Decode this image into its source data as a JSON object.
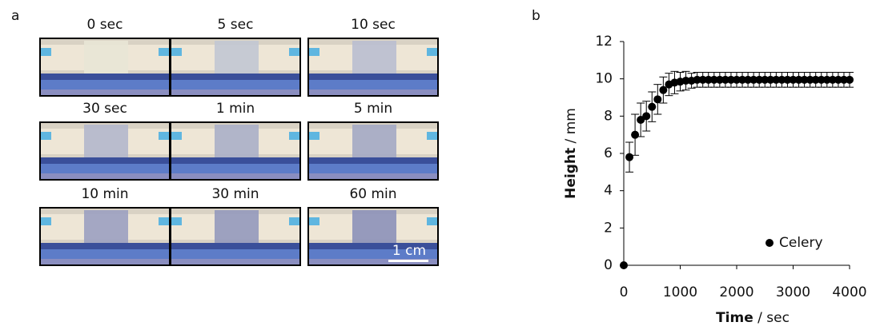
{
  "panel_a": {
    "label": "a",
    "frames": [
      "0 sec",
      "5 sec",
      "10 sec",
      "30 sec",
      "1 min",
      "5 min",
      "10 min",
      "30 min",
      "60 min"
    ],
    "scale_bar": "1 cm"
  },
  "chart_data": {
    "type": "scatter",
    "label": "b",
    "xlabel": [
      "Time",
      " / sec"
    ],
    "ylabel": [
      "Height",
      " / mm"
    ],
    "x": [
      0,
      100,
      200,
      300,
      400,
      500,
      600,
      700,
      800,
      900,
      1000,
      1100,
      1200,
      1300,
      1400,
      1500,
      1600,
      1700,
      1800,
      1900,
      2000,
      2100,
      2200,
      2300,
      2400,
      2500,
      2600,
      2700,
      2800,
      2900,
      3000,
      3100,
      3200,
      3300,
      3400,
      3500,
      3600,
      3700,
      3800,
      3900,
      4000
    ],
    "series": [
      {
        "name": "Celery",
        "color": "#000000",
        "values": [
          0,
          5.8,
          7.0,
          7.8,
          8.0,
          8.5,
          8.9,
          9.4,
          9.7,
          9.8,
          9.85,
          9.9,
          9.9,
          9.95,
          9.95,
          9.95,
          9.95,
          9.95,
          9.95,
          9.95,
          9.95,
          9.95,
          9.95,
          9.95,
          9.95,
          9.95,
          9.95,
          9.95,
          9.95,
          9.95,
          9.95,
          9.95,
          9.95,
          9.95,
          9.95,
          9.95,
          9.95,
          9.95,
          9.95,
          9.95,
          9.95
        ],
        "errors": [
          0,
          0.8,
          1.1,
          0.9,
          0.8,
          0.8,
          0.8,
          0.7,
          0.6,
          0.6,
          0.5,
          0.5,
          0.4,
          0.4,
          0.4,
          0.4,
          0.4,
          0.4,
          0.4,
          0.4,
          0.4,
          0.4,
          0.4,
          0.4,
          0.4,
          0.4,
          0.4,
          0.4,
          0.4,
          0.4,
          0.4,
          0.4,
          0.4,
          0.4,
          0.4,
          0.4,
          0.4,
          0.4,
          0.4,
          0.4,
          0.4
        ]
      }
    ],
    "xlim": [
      0,
      4000
    ],
    "xticks": [
      0,
      1000,
      2000,
      3000,
      4000
    ],
    "ylim": [
      0,
      12
    ],
    "yticks": [
      0,
      2,
      4,
      6,
      8,
      10,
      12
    ],
    "legend": "lower right"
  }
}
